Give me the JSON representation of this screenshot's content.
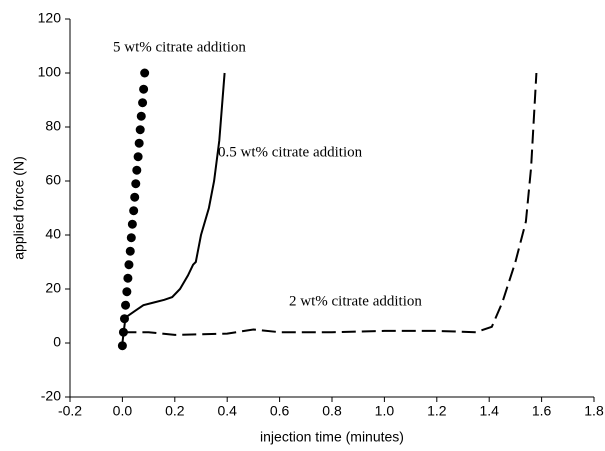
{
  "chart_data": {
    "type": "line",
    "xlabel": "injection time (minutes)",
    "ylabel": "applied force (N)",
    "xlim": [
      -0.2,
      1.8
    ],
    "xticks": [
      -0.2,
      {
        "value": 0,
        "label": "0.0"
      },
      0.2,
      0.4,
      0.6,
      0.8,
      {
        "value": 1,
        "label": "1.0"
      },
      1.2,
      1.4,
      1.6,
      1.8
    ],
    "ylim": [
      -20,
      120
    ],
    "yticks": [
      -20,
      0,
      20,
      40,
      60,
      80,
      100,
      120
    ],
    "grid": false,
    "series": [
      {
        "name": "5 wt% citrate addition",
        "color": "#000000",
        "style": "dotted",
        "x": [
          0,
          0.004,
          0.008,
          0.012,
          0.017,
          0.021,
          0.025,
          0.03,
          0.034,
          0.038,
          0.043,
          0.047,
          0.051,
          0.055,
          0.06,
          0.064,
          0.068,
          0.072,
          0.077,
          0.081,
          0.085
        ],
        "values": [
          -1,
          4,
          9,
          14,
          19,
          24,
          29,
          34,
          39,
          44,
          49,
          54,
          59,
          64,
          69,
          74,
          79,
          84,
          89,
          94,
          100
        ]
      },
      {
        "name": "0.5 wt% citrate addition",
        "color": "#000000",
        "style": "solid",
        "x": [
          0,
          0.01,
          0.02,
          0.05,
          0.08,
          0.12,
          0.16,
          0.19,
          0.22,
          0.25,
          0.27,
          0.28,
          0.3,
          0.33,
          0.35,
          0.37,
          0.39
        ],
        "values": [
          0,
          8,
          10,
          12,
          14,
          15,
          16,
          17,
          20,
          25,
          29,
          30,
          40,
          50,
          60,
          75,
          100
        ]
      },
      {
        "name": "2 wt% citrate addition",
        "color": "#000000",
        "style": "dashed",
        "x": [
          0,
          0.1,
          0.2,
          0.4,
          0.5,
          0.6,
          0.8,
          1.0,
          1.2,
          1.35,
          1.41,
          1.45,
          1.5,
          1.54,
          1.56,
          1.58
        ],
        "values": [
          4,
          4,
          3,
          3.5,
          5,
          4,
          4,
          4.5,
          4.5,
          4,
          6,
          15,
          30,
          45,
          65,
          100
        ]
      }
    ]
  }
}
